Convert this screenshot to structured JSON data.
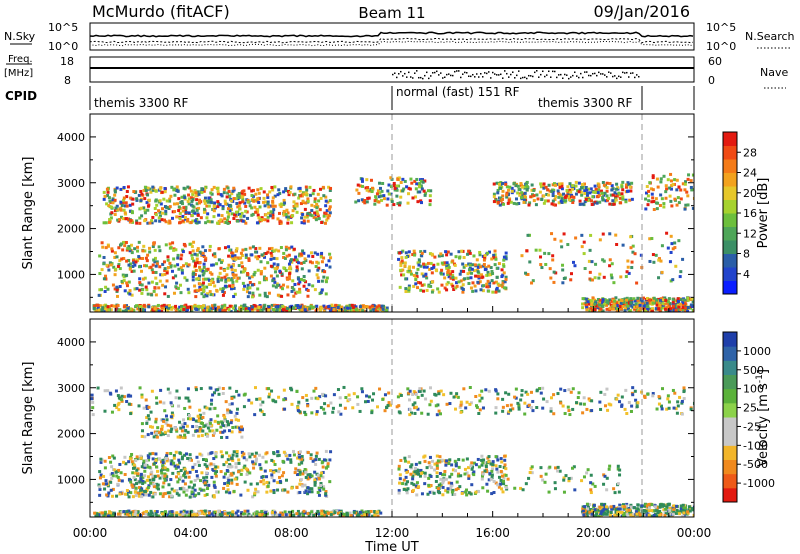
{
  "header": {
    "station": "McMurdo (fitACF)",
    "beam": "Beam 11",
    "date": "09/Jan/2016"
  },
  "chart_data": [
    {
      "type": "line",
      "name": "N.Sky / N.Search panel",
      "left_label": "N.Sky",
      "right_label": "N.Search",
      "left_ticks": [
        "10^5",
        "10^0"
      ],
      "right_ticks": [
        "10^5",
        "10^0"
      ]
    },
    {
      "type": "line",
      "name": "Freq / Nave panel",
      "left_label_top": "Freq.",
      "left_label_bottom": "[MHz]",
      "left_ticks": [
        "18",
        "8"
      ],
      "right_label": "Nave",
      "right_ticks": [
        "60",
        "0"
      ]
    },
    {
      "type": "table",
      "name": "CPID",
      "label": "CPID",
      "segments": [
        {
          "label": "themis 3300 RF",
          "start_hour": 0,
          "end_hour": 12
        },
        {
          "label": "normal (fast) 151 RF",
          "start_hour": 12,
          "end_hour": 21.9
        },
        {
          "label": "themis 3300 RF",
          "start_hour": 21.9,
          "end_hour": 24
        }
      ]
    },
    {
      "type": "heatmap",
      "name": "Power",
      "ylabel": "Slant Range [km]",
      "yticks": [
        1000,
        2000,
        3000,
        4000
      ],
      "ylim": [
        180,
        4500
      ],
      "colorbar_label": "Power [dB]",
      "colorbar_ticks": [
        4,
        8,
        12,
        16,
        20,
        24,
        28
      ],
      "colorbar_colors": [
        "#0a1eff",
        "#2244cc",
        "#2a5ea8",
        "#3b8f66",
        "#4ea658",
        "#6cbf3c",
        "#a6d22e",
        "#e6c72a",
        "#f2a21e",
        "#f47b18",
        "#f04a14",
        "#e31a10"
      ]
    },
    {
      "type": "heatmap",
      "name": "Velocity",
      "ylabel": "Slant Range [km]",
      "yticks": [
        1000,
        2000,
        3000,
        4000
      ],
      "ylim": [
        180,
        4500
      ],
      "xlabel": "Time UT",
      "xticks": [
        "00:00",
        "04:00",
        "08:00",
        "12:00",
        "16:00",
        "20:00",
        "00:00"
      ],
      "colorbar_label": "Velocity [m s",
      "colorbar_unit_sup": "-1",
      "colorbar_unit_close": "]",
      "colorbar_ticks": [
        "1000",
        "500",
        "100",
        "25",
        "-25",
        "-100",
        "-500",
        "-1000"
      ],
      "colorbar_colors": [
        "#1f3faa",
        "#2f63a8",
        "#3a8a8a",
        "#4a9a58",
        "#5bb23a",
        "#8cd24a",
        "#c8c8c8",
        "#c8c8c8",
        "#f2b52a",
        "#f08a1e",
        "#ee5a18",
        "#e31a10"
      ]
    }
  ]
}
